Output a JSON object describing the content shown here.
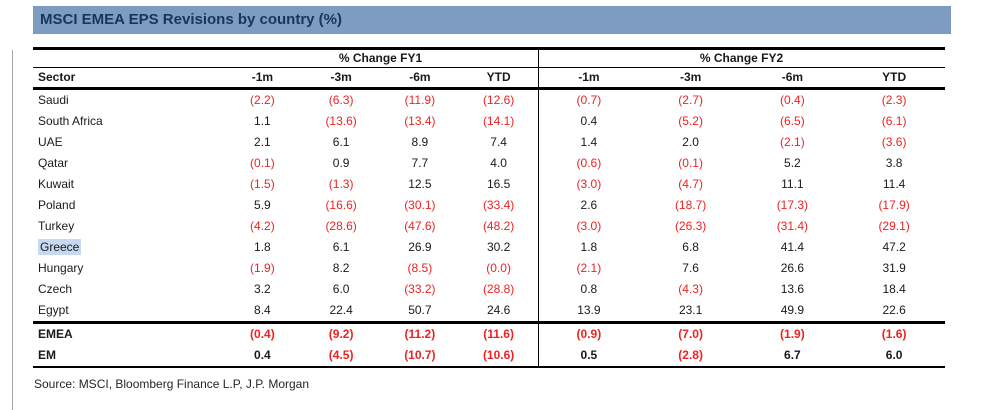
{
  "title": "MSCI EMEA EPS Revisions by country (%)",
  "source": "Source: MSCI, Bloomberg Finance L.P, J.P. Morgan",
  "colors": {
    "title_bar_bg": "#7e9bc2",
    "title_text": "#17365d",
    "negative_value": "#ee2222",
    "sector_highlight": "#c6d9f1"
  },
  "table": {
    "group_headers": [
      "% Change FY1",
      "% Change FY2"
    ],
    "sector_header": "Sector",
    "period_headers": [
      "-1m",
      "-3m",
      "-6m",
      "YTD"
    ],
    "highlighted_sector": "Greece",
    "rows": [
      {
        "sector": "Saudi",
        "fy1": [
          "(2.2)",
          "(6.3)",
          "(11.9)",
          "(12.6)"
        ],
        "fy2": [
          "(0.7)",
          "(2.7)",
          "(0.4)",
          "(2.3)"
        ]
      },
      {
        "sector": "South Africa",
        "fy1": [
          "1.1",
          "(13.6)",
          "(13.4)",
          "(14.1)"
        ],
        "fy2": [
          "0.4",
          "(5.2)",
          "(6.5)",
          "(6.1)"
        ]
      },
      {
        "sector": "UAE",
        "fy1": [
          "2.1",
          "6.1",
          "8.9",
          "7.4"
        ],
        "fy2": [
          "1.4",
          "2.0",
          "(2.1)",
          "(3.6)"
        ]
      },
      {
        "sector": "Qatar",
        "fy1": [
          "(0.1)",
          "0.9",
          "7.7",
          "4.0"
        ],
        "fy2": [
          "(0.6)",
          "(0.1)",
          "5.2",
          "3.8"
        ]
      },
      {
        "sector": "Kuwait",
        "fy1": [
          "(1.5)",
          "(1.3)",
          "12.5",
          "16.5"
        ],
        "fy2": [
          "(3.0)",
          "(4.7)",
          "11.1",
          "11.4"
        ]
      },
      {
        "sector": "Poland",
        "fy1": [
          "5.9",
          "(16.6)",
          "(30.1)",
          "(33.4)"
        ],
        "fy2": [
          "2.6",
          "(18.7)",
          "(17.3)",
          "(17.9)"
        ]
      },
      {
        "sector": "Turkey",
        "fy1": [
          "(4.2)",
          "(28.6)",
          "(47.6)",
          "(48.2)"
        ],
        "fy2": [
          "(3.0)",
          "(26.3)",
          "(31.4)",
          "(29.1)"
        ]
      },
      {
        "sector": "Greece",
        "fy1": [
          "1.8",
          "6.1",
          "26.9",
          "30.2"
        ],
        "fy2": [
          "1.8",
          "6.8",
          "41.4",
          "47.2"
        ]
      },
      {
        "sector": "Hungary",
        "fy1": [
          "(1.9)",
          "8.2",
          "(8.5)",
          "(0.0)"
        ],
        "fy2": [
          "(2.1)",
          "7.6",
          "26.6",
          "31.9"
        ]
      },
      {
        "sector": "Czech",
        "fy1": [
          "3.2",
          "6.0",
          "(33.2)",
          "(28.8)"
        ],
        "fy2": [
          "0.8",
          "(4.3)",
          "13.6",
          "18.4"
        ]
      },
      {
        "sector": "Egypt",
        "fy1": [
          "8.4",
          "22.4",
          "50.7",
          "24.6"
        ],
        "fy2": [
          "13.9",
          "23.1",
          "49.9",
          "22.6"
        ]
      }
    ],
    "summary_rows": [
      {
        "sector": "EMEA",
        "fy1": [
          "(0.4)",
          "(9.2)",
          "(11.2)",
          "(11.6)"
        ],
        "fy2": [
          "(0.9)",
          "(7.0)",
          "(1.9)",
          "(1.6)"
        ]
      },
      {
        "sector": "EM",
        "fy1": [
          "0.4",
          "(4.5)",
          "(10.7)",
          "(10.6)"
        ],
        "fy2": [
          "0.5",
          "(2.8)",
          "6.7",
          "6.0"
        ]
      }
    ]
  }
}
